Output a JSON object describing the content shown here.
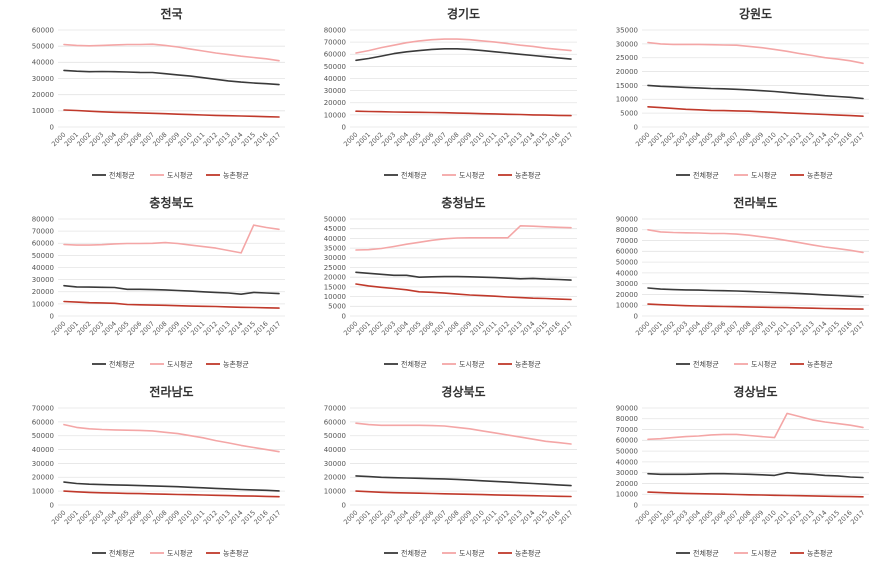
{
  "colors": {
    "total": "#3a3a3a",
    "urban": "#f4a6a6",
    "rural": "#c0392b"
  },
  "chart_data": [
    {
      "type": "line",
      "title": "전국",
      "x": [
        "2000",
        "2001",
        "2002",
        "2003",
        "2004",
        "2005",
        "2006",
        "2007",
        "2008",
        "2009",
        "2010",
        "2011",
        "2012",
        "2013",
        "2014",
        "2015",
        "2016",
        "2017"
      ],
      "ylim": [
        0,
        60000
      ],
      "yticks": [
        "0",
        "10000",
        "20000",
        "30000",
        "40000",
        "50000",
        "60000"
      ],
      "legend": "bottom",
      "series": [
        {
          "name": "전체평균",
          "key": "total",
          "values": [
            35000,
            34500,
            34200,
            34300,
            34200,
            34000,
            33800,
            33700,
            33000,
            32200,
            31500,
            30500,
            29500,
            28500,
            27800,
            27200,
            26800,
            26200
          ]
        },
        {
          "name": "도시평균",
          "key": "urban",
          "values": [
            51000,
            50500,
            50200,
            50500,
            50800,
            51000,
            51000,
            51200,
            50500,
            49500,
            48200,
            47000,
            45800,
            44800,
            43800,
            43000,
            42200,
            41000
          ]
        },
        {
          "name": "농촌평균",
          "key": "rural",
          "values": [
            10500,
            10200,
            9800,
            9400,
            9100,
            8900,
            8700,
            8500,
            8200,
            7900,
            7700,
            7400,
            7200,
            7000,
            6800,
            6600,
            6400,
            6200
          ]
        }
      ]
    },
    {
      "type": "line",
      "title": "경기도",
      "x": [
        "2000",
        "2001",
        "2002",
        "2003",
        "2004",
        "2005",
        "2006",
        "2007",
        "2008",
        "2009",
        "2010",
        "2011",
        "2012",
        "2013",
        "2014",
        "2015",
        "2016",
        "2017"
      ],
      "ylim": [
        0,
        80000
      ],
      "yticks": [
        "0",
        "10000",
        "20000",
        "30000",
        "40000",
        "50000",
        "60000",
        "70000",
        "80000"
      ],
      "legend": "bottom",
      "series": [
        {
          "name": "전체평균",
          "key": "total",
          "values": [
            55000,
            56500,
            58500,
            60500,
            62000,
            63000,
            64000,
            64500,
            64500,
            64000,
            63000,
            62000,
            61000,
            60000,
            59000,
            58000,
            57000,
            56000
          ]
        },
        {
          "name": "도시평균",
          "key": "urban",
          "values": [
            61000,
            63000,
            65500,
            67500,
            69500,
            71000,
            72000,
            72500,
            72500,
            72000,
            71000,
            70000,
            68800,
            67500,
            66500,
            65000,
            64000,
            63000
          ]
        },
        {
          "name": "농촌평균",
          "key": "rural",
          "values": [
            13000,
            12800,
            12600,
            12400,
            12200,
            12100,
            12000,
            11800,
            11500,
            11300,
            11000,
            10800,
            10500,
            10300,
            10000,
            9800,
            9600,
            9400
          ]
        }
      ]
    },
    {
      "type": "line",
      "title": "강원도",
      "x": [
        "2000",
        "2001",
        "2002",
        "2003",
        "2004",
        "2005",
        "2006",
        "2007",
        "2008",
        "2009",
        "2010",
        "2011",
        "2012",
        "2013",
        "2014",
        "2015",
        "2016",
        "2017"
      ],
      "ylim": [
        0,
        35000
      ],
      "yticks": [
        "0",
        "5000",
        "10000",
        "15000",
        "20000",
        "25000",
        "30000",
        "35000"
      ],
      "legend": "bottom",
      "series": [
        {
          "name": "전체평균",
          "key": "total",
          "values": [
            15000,
            14700,
            14500,
            14300,
            14100,
            13900,
            13800,
            13600,
            13400,
            13100,
            12800,
            12400,
            12000,
            11700,
            11300,
            11000,
            10700,
            10300
          ]
        },
        {
          "name": "도시평균",
          "key": "urban",
          "values": [
            30500,
            30000,
            29800,
            29800,
            29800,
            29700,
            29600,
            29500,
            29100,
            28600,
            28000,
            27300,
            26500,
            25800,
            25000,
            24500,
            23900,
            23000
          ]
        },
        {
          "name": "농촌평균",
          "key": "rural",
          "values": [
            7300,
            7000,
            6700,
            6400,
            6200,
            6000,
            5900,
            5800,
            5700,
            5500,
            5300,
            5100,
            4900,
            4700,
            4500,
            4300,
            4100,
            3900
          ]
        }
      ]
    },
    {
      "type": "line",
      "title": "충청북도",
      "x": [
        "2000",
        "2001",
        "2002",
        "2003",
        "2004",
        "2005",
        "2006",
        "2007",
        "2008",
        "2009",
        "2010",
        "2011",
        "2012",
        "2013",
        "2014",
        "2015",
        "2016",
        "2017"
      ],
      "ylim": [
        0,
        80000
      ],
      "yticks": [
        "0",
        "10000",
        "20000",
        "30000",
        "40000",
        "50000",
        "60000",
        "70000",
        "80000"
      ],
      "legend": "bottom",
      "series": [
        {
          "name": "전체평균",
          "key": "total",
          "values": [
            25000,
            24000,
            23800,
            23700,
            23500,
            22000,
            22000,
            21800,
            21500,
            21000,
            20500,
            20000,
            19500,
            19000,
            18000,
            19500,
            19000,
            18500
          ]
        },
        {
          "name": "도시평균",
          "key": "urban",
          "values": [
            59000,
            58500,
            58500,
            58800,
            59500,
            59800,
            59800,
            60000,
            60500,
            59800,
            58500,
            57200,
            56000,
            54000,
            52000,
            75000,
            73000,
            71500
          ]
        },
        {
          "name": "농촌평균",
          "key": "rural",
          "values": [
            12000,
            11500,
            11000,
            10800,
            10500,
            9500,
            9200,
            9000,
            8800,
            8500,
            8200,
            8000,
            7800,
            7500,
            7200,
            7000,
            6800,
            6500
          ]
        }
      ]
    },
    {
      "type": "line",
      "title": "충청남도",
      "x": [
        "2000",
        "2001",
        "2002",
        "2003",
        "2004",
        "2005",
        "2006",
        "2007",
        "2008",
        "2009",
        "2010",
        "2011",
        "2012",
        "2013",
        "2014",
        "2015",
        "2016",
        "2017"
      ],
      "ylim": [
        0,
        50000
      ],
      "yticks": [
        "0",
        "5000",
        "10000",
        "15000",
        "20000",
        "25000",
        "30000",
        "35000",
        "40000",
        "45000",
        "50000"
      ],
      "legend": "bottom",
      "series": [
        {
          "name": "전체평균",
          "key": "total",
          "values": [
            22500,
            22000,
            21500,
            21000,
            21000,
            20000,
            20200,
            20300,
            20300,
            20200,
            20000,
            19800,
            19500,
            19200,
            19400,
            19000,
            18800,
            18500
          ]
        },
        {
          "name": "도시평균",
          "key": "urban",
          "values": [
            34000,
            34200,
            34800,
            35800,
            37000,
            38000,
            39000,
            39800,
            40200,
            40300,
            40300,
            40300,
            40300,
            46500,
            46300,
            46000,
            45700,
            45500
          ]
        },
        {
          "name": "농촌평균",
          "key": "rural",
          "values": [
            16500,
            15500,
            14800,
            14200,
            13500,
            12500,
            12200,
            11800,
            11300,
            10800,
            10500,
            10200,
            9800,
            9500,
            9200,
            9000,
            8700,
            8500
          ]
        }
      ]
    },
    {
      "type": "line",
      "title": "전라북도",
      "x": [
        "2000",
        "2001",
        "2002",
        "2003",
        "2004",
        "2005",
        "2006",
        "2007",
        "2008",
        "2009",
        "2010",
        "2011",
        "2012",
        "2013",
        "2014",
        "2015",
        "2016",
        "2017"
      ],
      "ylim": [
        0,
        90000
      ],
      "yticks": [
        "0",
        "10000",
        "20000",
        "30000",
        "40000",
        "50000",
        "60000",
        "70000",
        "80000",
        "90000"
      ],
      "legend": "bottom",
      "series": [
        {
          "name": "전체평균",
          "key": "total",
          "values": [
            26000,
            25000,
            24500,
            24200,
            24000,
            23700,
            23500,
            23200,
            22800,
            22300,
            21800,
            21300,
            20800,
            20200,
            19600,
            19000,
            18400,
            17800
          ]
        },
        {
          "name": "도시평균",
          "key": "urban",
          "values": [
            80000,
            78000,
            77500,
            77200,
            77000,
            76500,
            76500,
            76000,
            75000,
            73500,
            72000,
            70000,
            68000,
            66000,
            64000,
            62500,
            61000,
            59000
          ]
        },
        {
          "name": "농촌평균",
          "key": "rural",
          "values": [
            11000,
            10500,
            10000,
            9600,
            9300,
            9000,
            8800,
            8600,
            8400,
            8200,
            8000,
            7800,
            7500,
            7200,
            7000,
            6800,
            6600,
            6400
          ]
        }
      ]
    },
    {
      "type": "line",
      "title": "전라남도",
      "x": [
        "2000",
        "2001",
        "2002",
        "2003",
        "2004",
        "2005",
        "2006",
        "2007",
        "2008",
        "2009",
        "2010",
        "2011",
        "2012",
        "2013",
        "2014",
        "2015",
        "2016",
        "2017"
      ],
      "ylim": [
        0,
        70000
      ],
      "yticks": [
        "0",
        "10000",
        "20000",
        "30000",
        "40000",
        "50000",
        "60000",
        "70000"
      ],
      "legend": "bottom",
      "series": [
        {
          "name": "전체평균",
          "key": "total",
          "values": [
            16500,
            15500,
            15000,
            14700,
            14500,
            14300,
            14000,
            13800,
            13500,
            13200,
            12800,
            12400,
            12000,
            11600,
            11200,
            10900,
            10600,
            10200
          ]
        },
        {
          "name": "도시평균",
          "key": "urban",
          "values": [
            58000,
            56000,
            55000,
            54500,
            54200,
            54000,
            53800,
            53500,
            52500,
            51500,
            50000,
            48500,
            46500,
            44800,
            43000,
            41500,
            40000,
            38500
          ]
        },
        {
          "name": "농촌평균",
          "key": "rural",
          "values": [
            10000,
            9500,
            9100,
            8800,
            8600,
            8400,
            8200,
            8000,
            7800,
            7600,
            7400,
            7200,
            7000,
            6800,
            6600,
            6400,
            6200,
            6000
          ]
        }
      ]
    },
    {
      "type": "line",
      "title": "경상북도",
      "x": [
        "2000",
        "2001",
        "2002",
        "2003",
        "2004",
        "2005",
        "2006",
        "2007",
        "2008",
        "2009",
        "2010",
        "2011",
        "2012",
        "2013",
        "2014",
        "2015",
        "2016",
        "2017"
      ],
      "ylim": [
        0,
        70000
      ],
      "yticks": [
        "0",
        "10000",
        "20000",
        "30000",
        "40000",
        "50000",
        "60000",
        "70000"
      ],
      "legend": "bottom",
      "series": [
        {
          "name": "전체평균",
          "key": "total",
          "values": [
            21000,
            20500,
            20000,
            19700,
            19500,
            19300,
            19000,
            18800,
            18500,
            18000,
            17500,
            17000,
            16500,
            16000,
            15500,
            15000,
            14500,
            14000
          ]
        },
        {
          "name": "도시평균",
          "key": "urban",
          "values": [
            59000,
            58000,
            57500,
            57500,
            57500,
            57500,
            57300,
            57000,
            56000,
            55000,
            53500,
            52000,
            50500,
            49000,
            47500,
            46000,
            45000,
            44000
          ]
        },
        {
          "name": "농촌평균",
          "key": "rural",
          "values": [
            10000,
            9600,
            9200,
            8900,
            8700,
            8500,
            8300,
            8100,
            7900,
            7700,
            7500,
            7300,
            7100,
            6900,
            6700,
            6500,
            6300,
            6100
          ]
        }
      ]
    },
    {
      "type": "line",
      "title": "경상남도",
      "x": [
        "2000",
        "2001",
        "2002",
        "2003",
        "2004",
        "2005",
        "2006",
        "2007",
        "2008",
        "2009",
        "2010",
        "2011",
        "2012",
        "2013",
        "2014",
        "2015",
        "2016",
        "2017"
      ],
      "ylim": [
        0,
        90000
      ],
      "yticks": [
        "0",
        "10000",
        "20000",
        "30000",
        "40000",
        "50000",
        "60000",
        "70000",
        "80000",
        "90000"
      ],
      "legend": "bottom",
      "series": [
        {
          "name": "전체평균",
          "key": "total",
          "values": [
            29000,
            28500,
            28500,
            28500,
            28700,
            29000,
            29000,
            28800,
            28500,
            28000,
            27500,
            30000,
            29000,
            28500,
            27500,
            27000,
            26000,
            25500
          ]
        },
        {
          "name": "도시평균",
          "key": "urban",
          "values": [
            61000,
            61500,
            62500,
            63500,
            64000,
            65000,
            65500,
            65500,
            64500,
            63500,
            62500,
            85000,
            82000,
            79000,
            77000,
            75500,
            74000,
            72000
          ]
        },
        {
          "name": "농촌평균",
          "key": "rural",
          "values": [
            12000,
            11500,
            11000,
            10800,
            10500,
            10300,
            10000,
            9700,
            9500,
            9300,
            9000,
            8800,
            8600,
            8400,
            8200,
            8000,
            7800,
            7600
          ]
        }
      ]
    }
  ]
}
